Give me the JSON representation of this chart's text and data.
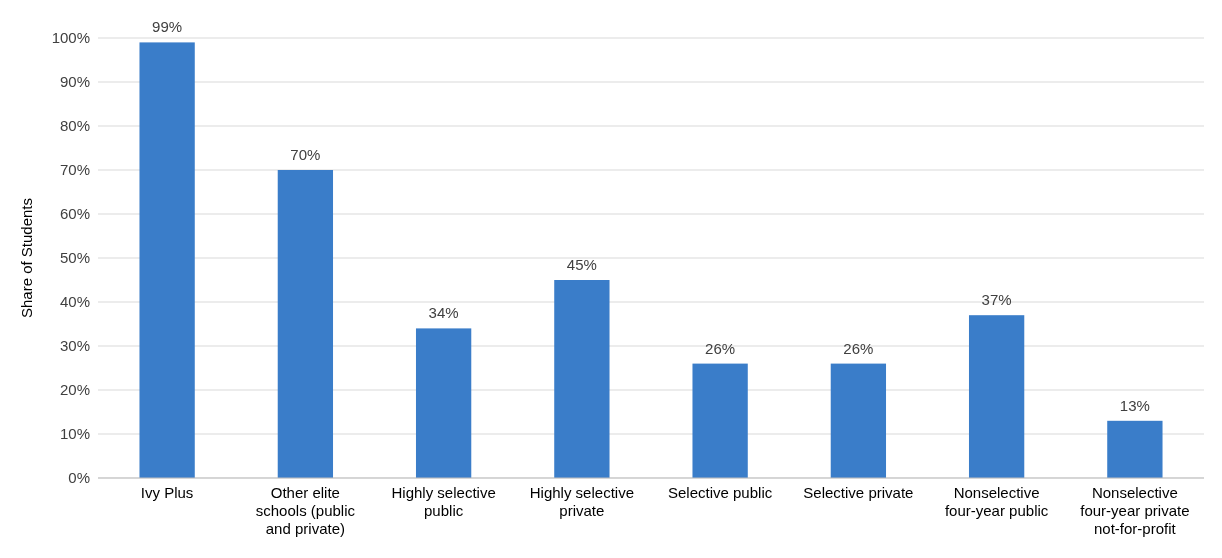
{
  "chart_data": {
    "type": "bar",
    "ylabel": "Share of Students",
    "categories": [
      "Ivy Plus",
      "Other elite schools (public and private)",
      "Highly selective public",
      "Highly selective private",
      "Selective public",
      "Selective private",
      "Nonselective four-year public",
      "Nonselective four-year private not-for-profit"
    ],
    "values": [
      99,
      70,
      34,
      45,
      26,
      26,
      37,
      13
    ],
    "color": "#3a7dc9",
    "ylim": [
      0,
      100
    ],
    "yticks": [
      {
        "value": 0,
        "label": "0%"
      },
      {
        "value": 10,
        "label": "10%"
      },
      {
        "value": 20,
        "label": "20%"
      },
      {
        "value": 30,
        "label": "30%"
      },
      {
        "value": 40,
        "label": "40%"
      },
      {
        "value": 50,
        "label": "50%"
      },
      {
        "value": 60,
        "label": "60%"
      },
      {
        "value": 70,
        "label": "70%"
      },
      {
        "value": 80,
        "label": "80%"
      },
      {
        "value": 90,
        "label": "90%"
      },
      {
        "value": 100,
        "label": "100%"
      }
    ],
    "value_labels": [
      "99%",
      "70%",
      "34%",
      "45%",
      "26%",
      "26%",
      "37%",
      "13%"
    ],
    "grid": "y"
  }
}
